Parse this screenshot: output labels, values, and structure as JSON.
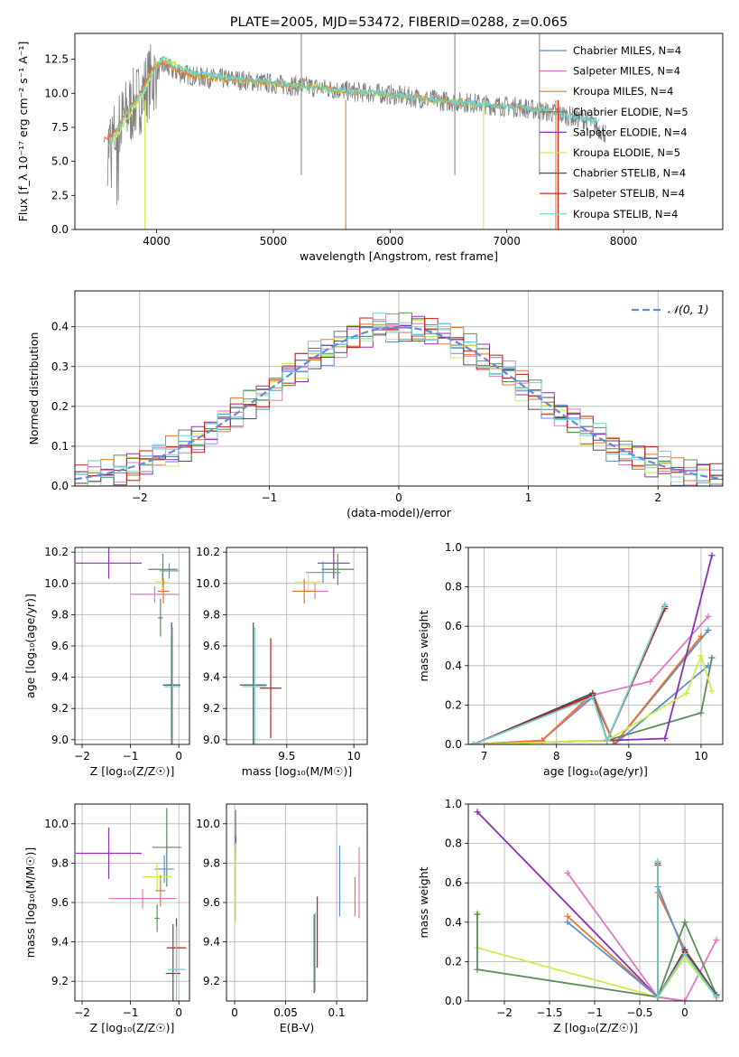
{
  "colors": {
    "Chabrier MILES": "#5a8fd8",
    "Salpeter MILES": "#e377c2",
    "Kroupa MILES": "#e8772a",
    "Chabrier ELODIE": "#5c8a5c",
    "Salpeter ELODIE": "#8d2fb3",
    "Kroupa ELODIE": "#d0ec4a",
    "Chabrier STELIB": "#505050",
    "Salpeter STELIB": "#c81818",
    "Kroupa STELIB": "#6ad2d2",
    "data": "#808080",
    "normal": "#5a8fd8"
  },
  "chart_data": [
    {
      "id": "spectrum",
      "type": "line",
      "title": "PLATE=2005, MJD=53472, FIBERID=0288, z=0.065",
      "xlabel": "wavelength [Angstrom, rest frame]",
      "ylabel": "Flux [f_λ 10⁻¹⁷ erg cm⁻² s⁻¹ A⁻¹]",
      "xlim": [
        3300,
        8850
      ],
      "ylim": [
        0,
        14.4
      ],
      "xticks": [
        4000,
        5000,
        6000,
        7000,
        8000
      ],
      "yticks": [
        0.0,
        2.5,
        5.0,
        7.5,
        10.0,
        12.5
      ],
      "legend": [
        "Chabrier MILES, N_SSP=4",
        "Salpeter MILES, N_SSP=4",
        "Kroupa MILES, N_SSP=4",
        "Chabrier ELODIE, N_SSP=5",
        "Salpeter ELODIE, N_SSP=4",
        "Kroupa ELODIE, N_SSP=5",
        "Chabrier STELIB, N_SSP=4",
        "Salpeter STELIB, N_SSP=4",
        "Kroupa STELIB, N_SSP=4"
      ],
      "legend_position": "upper-right",
      "observed": {
        "x": [
          3580,
          3650,
          3750,
          3850,
          3950,
          4050,
          4150,
          4250,
          4350,
          4500,
          4700,
          4900,
          5100,
          5300,
          5500,
          5700,
          5900,
          6100,
          6300,
          6500,
          6700,
          6900,
          7100,
          7300,
          7500,
          7700,
          7850
        ],
        "y": [
          6.0,
          7.0,
          8.6,
          9.6,
          11.0,
          12.0,
          11.6,
          11.4,
          11.2,
          11.1,
          11.0,
          10.8,
          10.6,
          10.5,
          10.3,
          10.1,
          10.0,
          9.8,
          9.6,
          9.4,
          9.3,
          9.1,
          9.0,
          8.7,
          8.4,
          8.0,
          7.0
        ],
        "noise": 1.4
      },
      "models": [
        {
          "name": "Kroupa ELODIE",
          "x": [
            3600,
            3700,
            3800,
            3900,
            4000,
            4100,
            4200,
            4300,
            4500,
            4700,
            4900,
            5100,
            5300,
            5500,
            5700,
            5900,
            6100,
            6300,
            6500,
            6700,
            6800
          ],
          "y": [
            6.2,
            7.4,
            8.9,
            10.2,
            12.2,
            12.4,
            11.9,
            11.4,
            11.1,
            11.0,
            10.8,
            10.6,
            10.5,
            10.3,
            10.1,
            10.0,
            9.8,
            9.6,
            9.4,
            9.2,
            9.1
          ]
        },
        {
          "name": "Kroupa MILES",
          "x": [
            3550,
            3650,
            3750,
            3850,
            3950,
            4050,
            4150,
            4300,
            4500,
            4700,
            4900,
            5100,
            5300,
            5500,
            5700,
            5900,
            6100,
            6300,
            6500,
            6700,
            6900,
            7100,
            7300,
            7400
          ],
          "y": [
            6.6,
            7.2,
            8.7,
            9.9,
            11.6,
            12.3,
            11.8,
            11.3,
            11.1,
            11.0,
            10.8,
            10.6,
            10.5,
            10.3,
            10.1,
            10.0,
            9.8,
            9.6,
            9.4,
            9.3,
            9.1,
            9.0,
            8.8,
            8.7
          ]
        },
        {
          "name": "Kroupa STELIB",
          "x": [
            3590,
            3650,
            3750,
            3850,
            3950,
            4050,
            4150,
            4300,
            4500,
            4700,
            4900,
            5100,
            5300,
            5500,
            5700,
            5900,
            6100,
            6300,
            6500,
            6700,
            6900,
            7100,
            7300,
            7500,
            7700,
            7800
          ],
          "y": [
            6.1,
            7.1,
            8.6,
            9.7,
            11.2,
            12.6,
            12.0,
            11.5,
            11.3,
            11.1,
            10.9,
            10.7,
            10.5,
            10.3,
            10.1,
            10.0,
            9.8,
            9.6,
            9.4,
            9.3,
            9.1,
            9.0,
            8.8,
            8.4,
            8.1,
            7.9
          ]
        }
      ]
    },
    {
      "id": "residuals",
      "type": "step",
      "xlabel": "(data-model)/error",
      "ylabel": "Normed distribution",
      "xlim": [
        -2.5,
        2.5
      ],
      "ylim": [
        0,
        0.49
      ],
      "xticks": [
        -2,
        -1,
        0,
        1,
        2
      ],
      "yticks": [
        0.0,
        0.1,
        0.2,
        0.3,
        0.4
      ],
      "legend": [
        "𝒩(0, 1)"
      ],
      "legend_position": "upper-right",
      "bin_width": 0.1,
      "series": [
        {
          "name": "Chabrier MILES",
          "offset": 0.0,
          "shift": 0.0
        },
        {
          "name": "Salpeter MILES",
          "offset": 0.02,
          "shift": 0.01
        },
        {
          "name": "Kroupa MILES",
          "offset": 0.04,
          "shift": -0.01
        },
        {
          "name": "Chabrier ELODIE",
          "offset": 0.06,
          "shift": 0.005
        },
        {
          "name": "Salpeter ELODIE",
          "offset": 0.08,
          "shift": 0.015
        },
        {
          "name": "Kroupa ELODIE",
          "offset": 0.01,
          "shift": -0.005
        },
        {
          "name": "Chabrier STELIB",
          "offset": 0.03,
          "shift": 0.0
        },
        {
          "name": "Salpeter STELIB",
          "offset": 0.05,
          "shift": 0.008
        },
        {
          "name": "Kroupa STELIB",
          "offset": 0.07,
          "shift": -0.008
        }
      ]
    },
    {
      "id": "age-vs-Z",
      "type": "errorbar",
      "xlabel": "Z [log₁₀(Z/Z☉)]",
      "ylabel": "age  [log₁₀(age/yr)]",
      "xlim": [
        -2.15,
        0.22
      ],
      "ylim": [
        8.97,
        10.23
      ],
      "xticks": [
        -2,
        -1,
        0
      ],
      "yticks": [
        9.0,
        9.2,
        9.4,
        9.6,
        9.8,
        10.0,
        10.2
      ],
      "points": [
        {
          "series": "Salpeter ELODIE",
          "x": -1.45,
          "y": 10.13,
          "xerr": 0.68,
          "yerr": 0.1
        },
        {
          "series": "Salpeter MILES",
          "x": -0.5,
          "y": 9.93,
          "xerr": 0.5,
          "yerr": 0.05
        },
        {
          "series": "Chabrier ELODIE",
          "x": -0.33,
          "y": 10.09,
          "xerr": 0.3,
          "yerr": 0.1
        },
        {
          "series": "Chabrier MILES",
          "x": -0.2,
          "y": 10.08,
          "xerr": 0.2,
          "yerr": 0.05
        },
        {
          "series": "Kroupa ELODIE",
          "x": -0.35,
          "y": 10.01,
          "xerr": 0.15,
          "yerr": 0.07
        },
        {
          "series": "Kroupa MILES",
          "x": -0.32,
          "y": 9.95,
          "xerr": 0.12,
          "yerr": 0.08
        },
        {
          "series": "Chabrier ELODIE",
          "x": -0.38,
          "y": 9.78,
          "xerr": 0.05,
          "yerr": 0.12
        },
        {
          "series": "Salpeter STELIB",
          "x": -0.15,
          "y": 9.35,
          "xerr": 0.05,
          "yerr": 0.32
        },
        {
          "series": "Chabrier STELIB",
          "x": -0.15,
          "y": 9.35,
          "xerr": 0.18,
          "yerr": 0.4
        },
        {
          "series": "Kroupa STELIB",
          "x": -0.13,
          "y": 9.34,
          "xerr": 0.17,
          "yerr": 0.38
        }
      ]
    },
    {
      "id": "age-vs-mass",
      "type": "errorbar",
      "xlabel": "mass [log₁₀(M/M☉)]",
      "ylabel": "",
      "xlim": [
        9.05,
        10.1
      ],
      "ylim": [
        8.97,
        10.23
      ],
      "xticks": [
        9.5,
        10.0
      ],
      "yticks": [
        9.0,
        9.2,
        9.4,
        9.6,
        9.8,
        10.0,
        10.2
      ],
      "points": [
        {
          "series": "Salpeter ELODIE",
          "x": 9.85,
          "y": 10.13,
          "xerr": 0.12,
          "yerr": 0.1
        },
        {
          "series": "Chabrier ELODIE",
          "x": 9.88,
          "y": 10.09,
          "xerr": 0.12,
          "yerr": 0.1
        },
        {
          "series": "Chabrier MILES",
          "x": 9.77,
          "y": 10.07,
          "xerr": 0.13,
          "yerr": 0.07
        },
        {
          "series": "Salpeter MILES",
          "x": 9.71,
          "y": 9.95,
          "xerr": 0.1,
          "yerr": 0.05
        },
        {
          "series": "Kroupa ELODIE",
          "x": 9.66,
          "y": 10.01,
          "xerr": 0.1,
          "yerr": 0.07
        },
        {
          "series": "Kroupa MILES",
          "x": 9.63,
          "y": 9.95,
          "xerr": 0.09,
          "yerr": 0.08
        },
        {
          "series": "Salpeter STELIB",
          "x": 9.38,
          "y": 9.33,
          "xerr": 0.08,
          "yerr": 0.32
        },
        {
          "series": "Chabrier STELIB",
          "x": 9.25,
          "y": 9.35,
          "xerr": 0.1,
          "yerr": 0.4
        },
        {
          "series": "Kroupa STELIB",
          "x": 9.26,
          "y": 9.34,
          "xerr": 0.09,
          "yerr": 0.38
        }
      ]
    },
    {
      "id": "weight-vs-age",
      "type": "line",
      "xlabel": "age  [log₁₀(age/yr)]",
      "ylabel": "mass weight",
      "xlim": [
        6.78,
        10.3
      ],
      "ylim": [
        0,
        1.0
      ],
      "xticks": [
        7,
        8,
        9,
        10
      ],
      "yticks": [
        0.0,
        0.2,
        0.4,
        0.6,
        0.8,
        1.0
      ],
      "series": [
        {
          "name": "Chabrier MILES",
          "x": [
            6.85,
            7.8,
            8.5,
            8.8,
            10.1
          ],
          "y": [
            0.0,
            0.02,
            0.24,
            0.0,
            0.58
          ]
        },
        {
          "name": "Chabrier MILES",
          "x": [
            8.8,
            10.1
          ],
          "y": [
            0.0,
            0.4
          ]
        },
        {
          "name": "Salpeter MILES",
          "x": [
            6.85,
            7.8,
            8.5,
            9.3,
            10.1
          ],
          "y": [
            0.0,
            0.02,
            0.25,
            0.32,
            0.65
          ]
        },
        {
          "name": "Kroupa MILES",
          "x": [
            6.85,
            7.8,
            8.5,
            8.8,
            10.0
          ],
          "y": [
            0.0,
            0.02,
            0.26,
            0.0,
            0.55
          ]
        },
        {
          "name": "Chabrier ELODIE",
          "x": [
            6.85,
            8.7,
            10.0,
            10.15
          ],
          "y": [
            0.0,
            0.02,
            0.16,
            0.44
          ]
        },
        {
          "name": "Salpeter ELODIE",
          "x": [
            6.85,
            8.7,
            9.5,
            10.15
          ],
          "y": [
            0.0,
            0.02,
            0.03,
            0.96
          ]
        },
        {
          "name": "Kroupa ELODIE",
          "x": [
            6.85,
            8.7,
            9.8,
            10.0,
            10.15
          ],
          "y": [
            0.0,
            0.02,
            0.26,
            0.45,
            0.27
          ]
        },
        {
          "name": "Chabrier STELIB",
          "x": [
            6.85,
            8.5,
            8.7,
            9.5
          ],
          "y": [
            0.0,
            0.26,
            0.02,
            0.7
          ]
        },
        {
          "name": "Salpeter STELIB",
          "x": [
            6.85,
            8.5,
            8.7,
            9.5
          ],
          "y": [
            0.0,
            0.25,
            0.02,
            0.69
          ]
        },
        {
          "name": "Kroupa STELIB",
          "x": [
            6.85,
            8.5,
            8.7,
            9.5
          ],
          "y": [
            0.0,
            0.24,
            0.02,
            0.71
          ]
        }
      ]
    },
    {
      "id": "mass-vs-Z",
      "type": "errorbar",
      "xlabel": "Z [log₁₀(Z/Z☉)]",
      "ylabel": "mass [log₁₀(M/M☉)]",
      "xlim": [
        -2.15,
        0.22
      ],
      "ylim": [
        9.1,
        10.1
      ],
      "xticks": [
        -2,
        -1,
        0
      ],
      "yticks": [
        9.2,
        9.4,
        9.6,
        9.8,
        10.0
      ],
      "points": [
        {
          "series": "Salpeter ELODIE",
          "x": -1.45,
          "y": 9.85,
          "xerr": 0.68,
          "yerr": 0.13
        },
        {
          "series": "Salpeter MILES",
          "x": -0.75,
          "y": 9.62,
          "xerr": 0.7,
          "yerr": 0.05
        },
        {
          "series": "Chabrier ELODIE",
          "x": -0.25,
          "y": 9.88,
          "xerr": 0.3,
          "yerr": 0.2
        },
        {
          "series": "Chabrier MILES",
          "x": -0.3,
          "y": 9.77,
          "xerr": 0.2,
          "yerr": 0.07
        },
        {
          "series": "Kroupa ELODIE",
          "x": -0.45,
          "y": 9.73,
          "xerr": 0.3,
          "yerr": 0.07
        },
        {
          "series": "Kroupa MILES",
          "x": -0.38,
          "y": 9.66,
          "xerr": 0.1,
          "yerr": 0.08
        },
        {
          "series": "Chabrier ELODIE",
          "x": -0.45,
          "y": 9.52,
          "xerr": 0.05,
          "yerr": 0.07
        },
        {
          "series": "Salpeter STELIB",
          "x": -0.05,
          "y": 9.37,
          "xerr": 0.2,
          "yerr": 0.15
        },
        {
          "series": "Chabrier STELIB",
          "x": -0.12,
          "y": 9.24,
          "xerr": 0.15,
          "yerr": 0.25
        },
        {
          "series": "Kroupa STELIB",
          "x": -0.05,
          "y": 9.26,
          "xerr": 0.18,
          "yerr": 0.22
        }
      ]
    },
    {
      "id": "mass-vs-ebv",
      "type": "errorbar",
      "xlabel": "E(B-V)",
      "ylabel": "",
      "xlim": [
        -0.008,
        0.13
      ],
      "ylim": [
        9.1,
        10.1
      ],
      "xticks": [
        0.0,
        0.05,
        0.1
      ],
      "yticks": [
        9.2,
        9.4,
        9.6,
        9.8,
        10.0
      ],
      "points": [
        {
          "series": "Chabrier ELODIE",
          "x": 0.001,
          "y": 9.99,
          "xerr": 0.0,
          "yerr": 0.08
        },
        {
          "series": "Salpeter ELODIE",
          "x": 0.001,
          "y": 9.88,
          "xerr": 0.0,
          "yerr": 0.06
        },
        {
          "series": "Kroupa ELODIE",
          "x": 0.001,
          "y": 9.7,
          "xerr": 0.0,
          "yerr": 0.2
        },
        {
          "series": "Chabrier STELIB",
          "x": 0.078,
          "y": 9.34,
          "xerr": 0.0,
          "yerr": 0.2
        },
        {
          "series": "Kroupa STELIB",
          "x": 0.079,
          "y": 9.35,
          "xerr": 0.0,
          "yerr": 0.2
        },
        {
          "series": "Salpeter STELIB",
          "x": 0.081,
          "y": 9.45,
          "xerr": 0.0,
          "yerr": 0.18
        },
        {
          "series": "Chabrier MILES",
          "x": 0.103,
          "y": 9.71,
          "xerr": 0.0,
          "yerr": 0.18
        },
        {
          "series": "Kroupa MILES",
          "x": 0.118,
          "y": 9.63,
          "xerr": 0.0,
          "yerr": 0.1
        },
        {
          "series": "Salpeter MILES",
          "x": 0.122,
          "y": 9.7,
          "xerr": 0.0,
          "yerr": 0.18
        }
      ]
    },
    {
      "id": "weight-vs-Z",
      "type": "line",
      "xlabel": "Z [log₁₀(Z/Z☉)]",
      "ylabel": "mass weight",
      "xlim": [
        -2.4,
        0.42
      ],
      "ylim": [
        0,
        1.0
      ],
      "xticks": [
        -2.0,
        -1.5,
        -1.0,
        -0.5,
        0.0
      ],
      "yticks": [
        0.0,
        0.2,
        0.4,
        0.6,
        0.8,
        1.0
      ],
      "series": [
        {
          "name": "Salpeter ELODIE",
          "x": [
            -2.3,
            -0.3,
            0.0
          ],
          "y": [
            0.96,
            0.02,
            0.0
          ]
        },
        {
          "name": "Salpeter MILES",
          "x": [
            -1.3,
            -0.3,
            0.0,
            0.35
          ],
          "y": [
            0.65,
            0.02,
            0.0,
            0.31
          ]
        },
        {
          "name": "Kroupa MILES",
          "x": [
            -1.3,
            -0.3,
            -0.3,
            0.0
          ],
          "y": [
            0.43,
            0.02,
            0.55,
            0.26
          ]
        },
        {
          "name": "Chabrier MILES",
          "x": [
            -1.3,
            -0.3,
            -0.3,
            0.0
          ],
          "y": [
            0.4,
            0.02,
            0.58,
            0.24
          ]
        },
        {
          "name": "Kroupa ELODIE",
          "x": [
            -2.3,
            -2.3,
            -0.3,
            0.0,
            0.35
          ],
          "y": [
            0.45,
            0.27,
            0.02,
            0.22,
            0.02
          ]
        },
        {
          "name": "Chabrier ELODIE",
          "x": [
            -2.3,
            -2.3,
            -0.3,
            0.0,
            0.35
          ],
          "y": [
            0.44,
            0.16,
            0.02,
            0.4,
            0.03
          ]
        },
        {
          "name": "Chabrier STELIB",
          "x": [
            -0.3,
            -0.3,
            0.0,
            0.35
          ],
          "y": [
            0.7,
            0.02,
            0.26,
            0.03
          ]
        },
        {
          "name": "Salpeter STELIB",
          "x": [
            -0.3,
            -0.3,
            0.0,
            0.35
          ],
          "y": [
            0.69,
            0.02,
            0.25,
            0.02
          ]
        },
        {
          "name": "Kroupa STELIB",
          "x": [
            -0.3,
            -0.3,
            0.0,
            0.35
          ],
          "y": [
            0.71,
            0.02,
            0.24,
            0.02
          ]
        }
      ]
    }
  ]
}
